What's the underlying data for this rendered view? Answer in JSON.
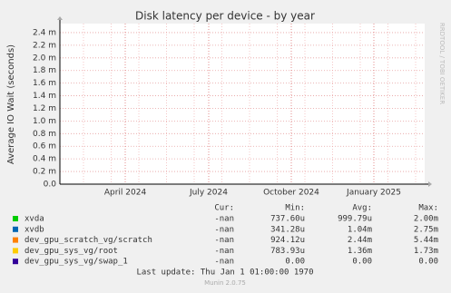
{
  "chart_data": {
    "type": "line",
    "title": "Disk latency per device - by year",
    "y_label": "Average IO Wait (seconds)",
    "watermark": "RRDTOOL / TOBI OETIKER",
    "ylim": [
      0,
      0.0025
    ],
    "yticks": [
      {
        "value": 0,
        "label": "0.0"
      },
      {
        "value": 0.0002,
        "label": "0.2 m"
      },
      {
        "value": 0.0004,
        "label": "0.4 m"
      },
      {
        "value": 0.0006,
        "label": "0.6 m"
      },
      {
        "value": 0.0008,
        "label": "0.8 m"
      },
      {
        "value": 0.001,
        "label": "1.0 m"
      },
      {
        "value": 0.0012,
        "label": "1.2 m"
      },
      {
        "value": 0.0014,
        "label": "1.4 m"
      },
      {
        "value": 0.0016,
        "label": "1.6 m"
      },
      {
        "value": 0.0018,
        "label": "1.8 m"
      },
      {
        "value": 0.002,
        "label": "2.0 m"
      },
      {
        "value": 0.0022,
        "label": "2.2 m"
      },
      {
        "value": 0.0024,
        "label": "2.4 m"
      }
    ],
    "xtick_labels": [
      "April 2024",
      "July 2024",
      "October 2024",
      "January 2025"
    ],
    "grid": true,
    "legend_headers": [
      "Cur:",
      "Min:",
      "Avg:",
      "Max:"
    ],
    "series": [
      {
        "name": "xvda",
        "color": "#00cc00",
        "stats": [
          "-nan",
          "737.60u",
          "999.79u",
          "2.00m"
        ]
      },
      {
        "name": "xvdb",
        "color": "#0066b3",
        "stats": [
          "-nan",
          "341.28u",
          "1.04m",
          "2.75m"
        ]
      },
      {
        "name": "dev_gpu_scratch_vg/scratch",
        "color": "#ff8000",
        "stats": [
          "-nan",
          "924.12u",
          "2.44m",
          "5.44m"
        ]
      },
      {
        "name": "dev_gpu_sys_vg/root",
        "color": "#ffcc00",
        "stats": [
          "-nan",
          "783.93u",
          "1.36m",
          "1.73m"
        ]
      },
      {
        "name": "dev_gpu_sys_vg/swap_1",
        "color": "#330099",
        "stats": [
          "-nan",
          "0.00",
          "0.00",
          "0.00"
        ]
      }
    ],
    "last_update": "Last update: Thu Jan  1 01:00:00 1970",
    "footer": "Munin 2.0.75"
  }
}
